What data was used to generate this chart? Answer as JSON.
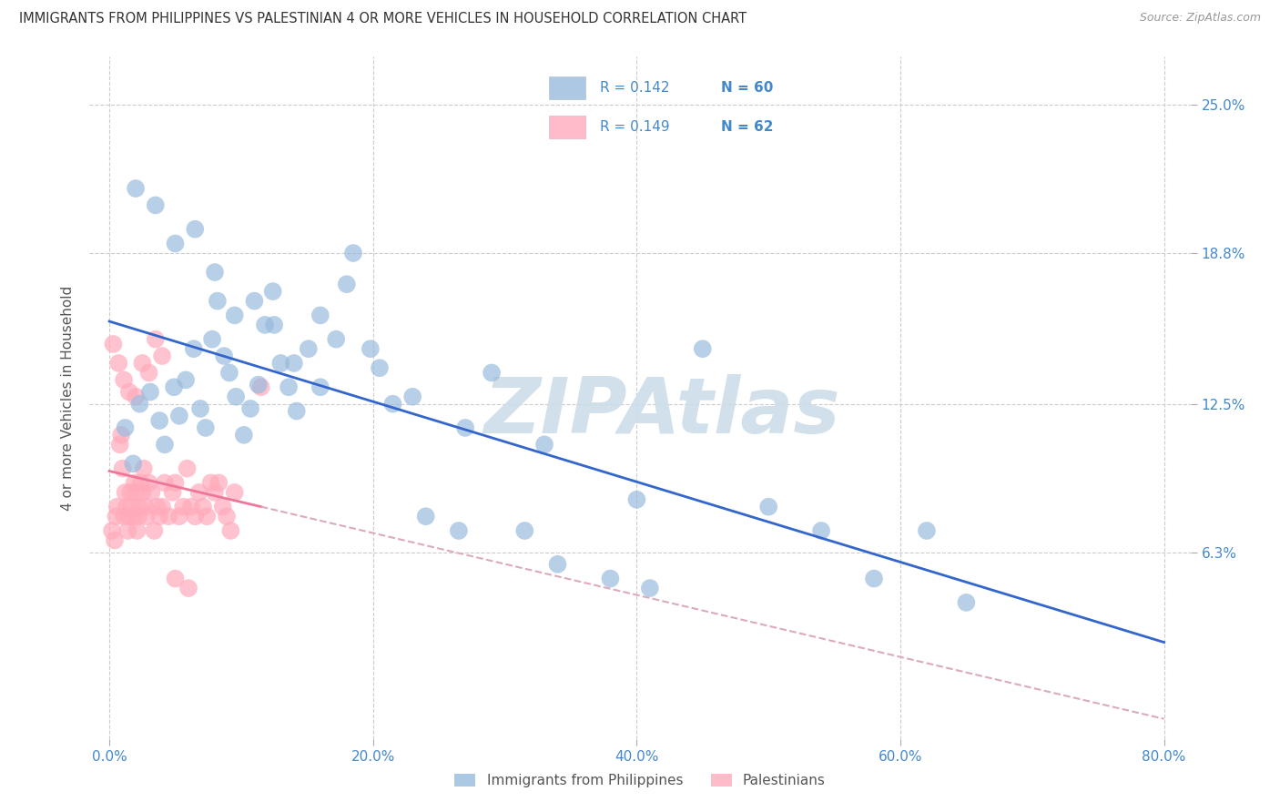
{
  "title": "IMMIGRANTS FROM PHILIPPINES VS PALESTINIAN 4 OR MORE VEHICLES IN HOUSEHOLD CORRELATION CHART",
  "source_text": "Source: ZipAtlas.com",
  "ylabel": "4 or more Vehicles in Household",
  "legend_label_blue": "Immigrants from Philippines",
  "legend_label_pink": "Palestinians",
  "blue_color": "#99BBDD",
  "pink_color": "#FFAABB",
  "blue_line_color": "#3366CC",
  "pink_line_color": "#EE7799",
  "pink_dash_color": "#DDAABB",
  "watermark": "ZIPAtlas",
  "watermark_color": "#CCDDE8",
  "xlim": [
    -1.5,
    82
  ],
  "ylim": [
    -1.5,
    27
  ],
  "yticks": [
    6.3,
    12.5,
    18.8,
    25.0
  ],
  "xticks": [
    0.0,
    20.0,
    40.0,
    60.0,
    80.0
  ],
  "blue_x": [
    1.2,
    1.8,
    2.3,
    3.1,
    3.8,
    4.2,
    4.9,
    5.3,
    5.8,
    6.4,
    6.9,
    7.3,
    7.8,
    8.2,
    8.7,
    9.1,
    9.6,
    10.2,
    10.7,
    11.3,
    11.8,
    12.4,
    13.0,
    13.6,
    14.2,
    15.1,
    16.0,
    17.2,
    18.5,
    19.8,
    21.5,
    24.0,
    26.5,
    29.0,
    31.5,
    34.0,
    38.0,
    41.0,
    45.0,
    50.0,
    54.0,
    58.0,
    62.0,
    65.0,
    2.0,
    3.5,
    5.0,
    6.5,
    8.0,
    9.5,
    11.0,
    12.5,
    14.0,
    16.0,
    18.0,
    20.5,
    23.0,
    27.0,
    33.0,
    40.0
  ],
  "blue_y": [
    11.5,
    10.0,
    12.5,
    13.0,
    11.8,
    10.8,
    13.2,
    12.0,
    13.5,
    14.8,
    12.3,
    11.5,
    15.2,
    16.8,
    14.5,
    13.8,
    12.8,
    11.2,
    12.3,
    13.3,
    15.8,
    17.2,
    14.2,
    13.2,
    12.2,
    14.8,
    16.2,
    15.2,
    18.8,
    14.8,
    12.5,
    7.8,
    7.2,
    13.8,
    7.2,
    5.8,
    5.2,
    4.8,
    14.8,
    8.2,
    7.2,
    5.2,
    7.2,
    4.2,
    21.5,
    20.8,
    19.2,
    19.8,
    18.0,
    16.2,
    16.8,
    15.8,
    14.2,
    13.2,
    17.5,
    14.0,
    12.8,
    11.5,
    10.8,
    8.5
  ],
  "pink_x": [
    0.2,
    0.4,
    0.5,
    0.6,
    0.8,
    0.9,
    1.0,
    1.1,
    1.2,
    1.3,
    1.4,
    1.5,
    1.6,
    1.7,
    1.8,
    1.9,
    2.0,
    2.1,
    2.2,
    2.3,
    2.4,
    2.5,
    2.6,
    2.7,
    2.8,
    3.0,
    3.2,
    3.4,
    3.6,
    3.8,
    4.0,
    4.2,
    4.5,
    4.8,
    5.0,
    5.3,
    5.6,
    5.9,
    6.2,
    6.5,
    6.8,
    7.1,
    7.4,
    7.7,
    8.0,
    8.3,
    8.6,
    8.9,
    9.2,
    9.5,
    0.3,
    0.7,
    1.1,
    1.5,
    2.0,
    2.5,
    3.0,
    3.5,
    4.0,
    5.0,
    6.0,
    11.5
  ],
  "pink_y": [
    7.2,
    6.8,
    7.8,
    8.2,
    10.8,
    11.2,
    9.8,
    7.8,
    8.8,
    8.2,
    7.2,
    7.8,
    8.8,
    8.2,
    7.8,
    9.2,
    8.8,
    7.2,
    7.8,
    8.2,
    9.2,
    8.8,
    9.8,
    8.2,
    7.8,
    9.2,
    8.8,
    7.2,
    8.2,
    7.8,
    8.2,
    9.2,
    7.8,
    8.8,
    9.2,
    7.8,
    8.2,
    9.8,
    8.2,
    7.8,
    8.8,
    8.2,
    7.8,
    9.2,
    8.8,
    9.2,
    8.2,
    7.8,
    7.2,
    8.8,
    15.0,
    14.2,
    13.5,
    13.0,
    12.8,
    14.2,
    13.8,
    15.2,
    14.5,
    5.2,
    4.8,
    13.2
  ]
}
